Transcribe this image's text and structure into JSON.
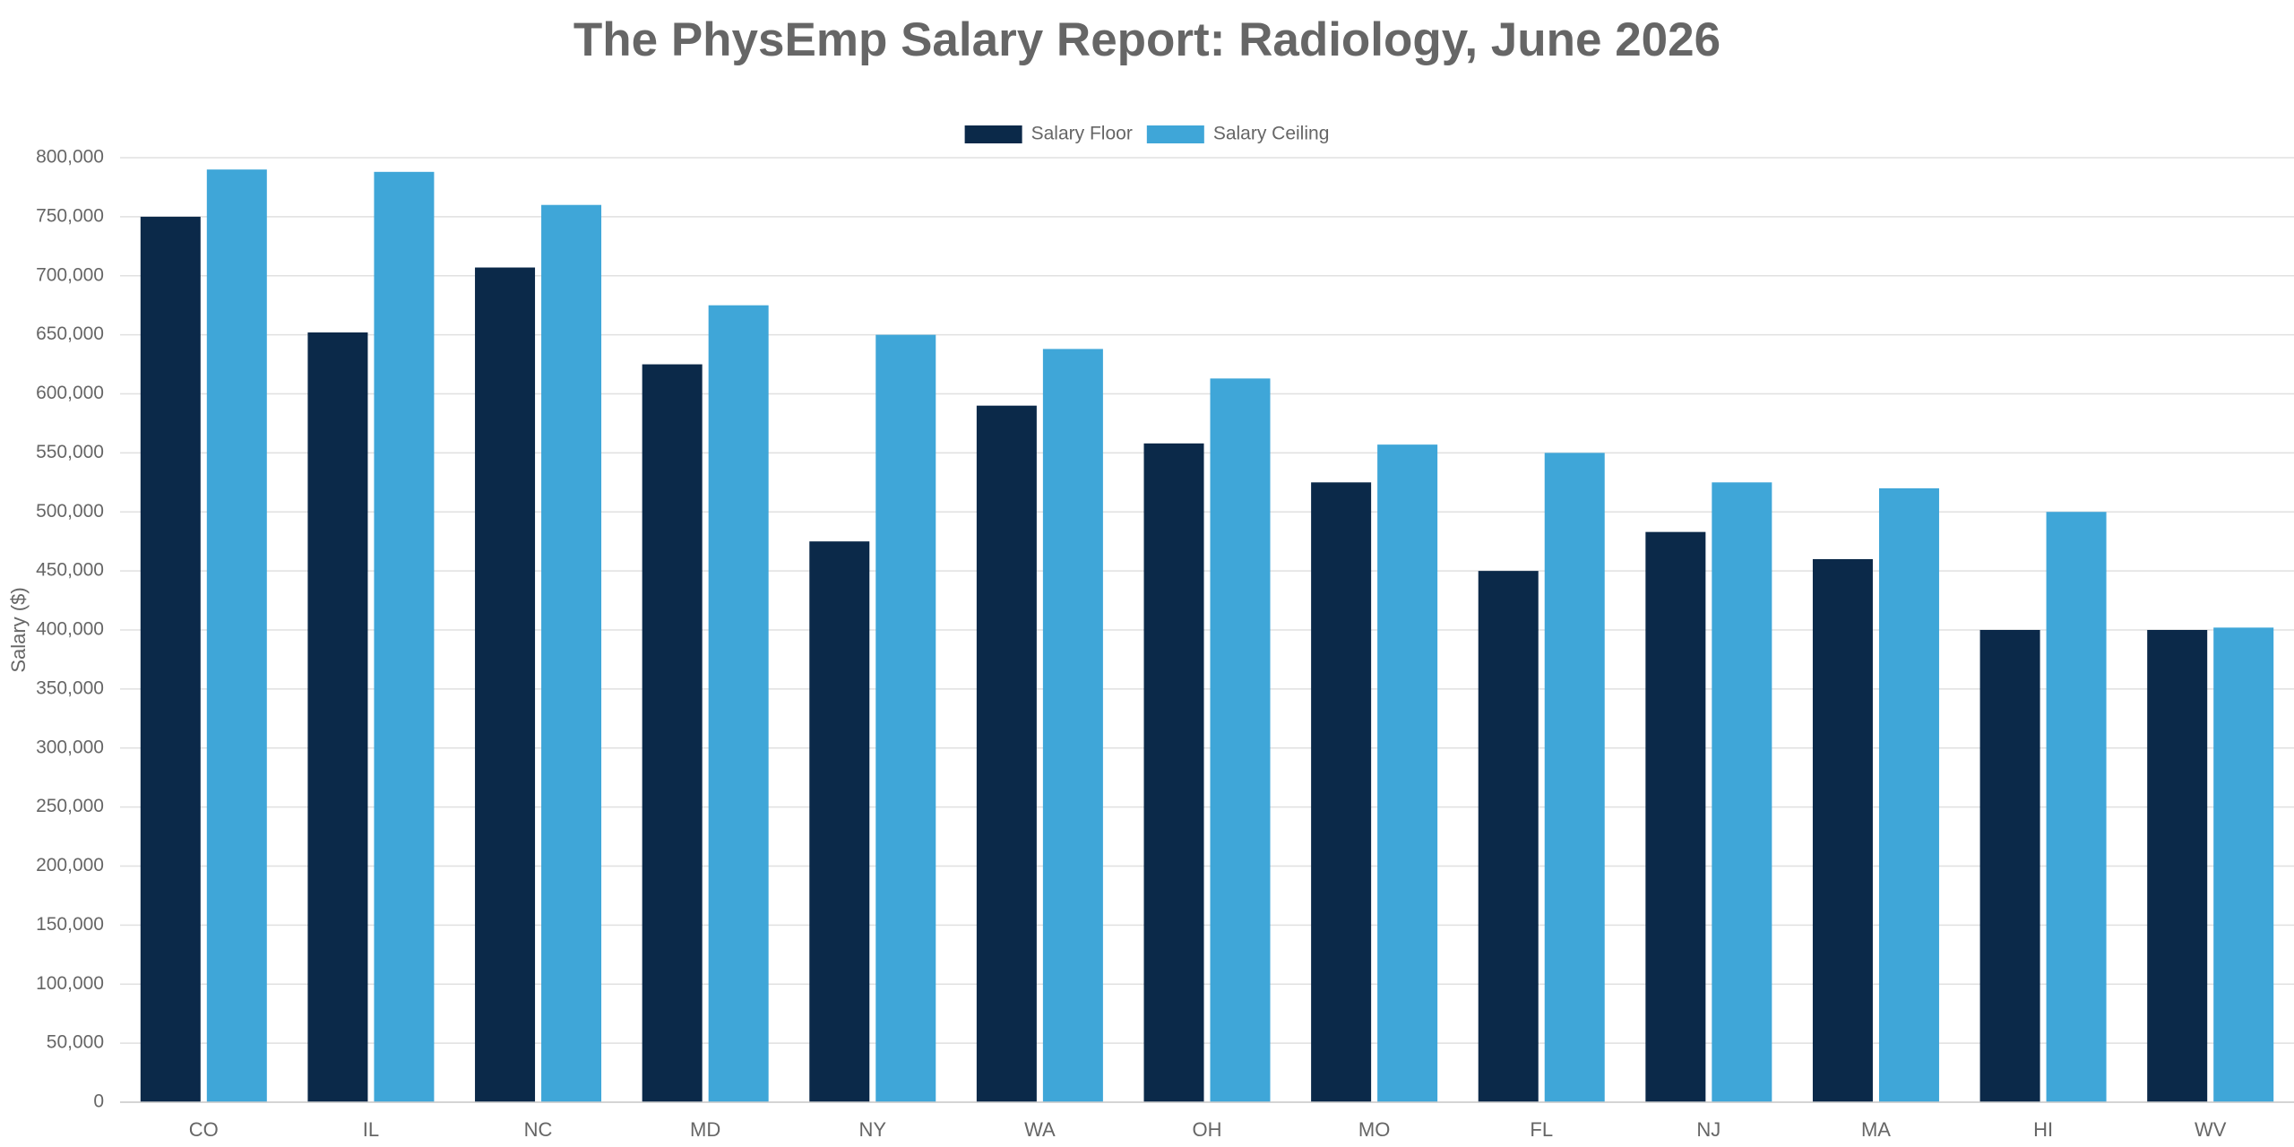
{
  "chart_data": {
    "type": "bar",
    "title": "The PhysEmp Salary Report: Radiology, June 2026",
    "y_label": "Salary ($)",
    "categories": [
      "CO",
      "IL",
      "NC",
      "MD",
      "NY",
      "WA",
      "OH",
      "MO",
      "FL",
      "NJ",
      "MA",
      "HI",
      "WV"
    ],
    "series": [
      {
        "name": "Salary Floor",
        "color": "#0b2949",
        "values": [
          750000,
          652000,
          707000,
          625000,
          475000,
          590000,
          558000,
          525000,
          450000,
          483000,
          460000,
          400000,
          400000
        ]
      },
      {
        "name": "Salary Ceiling",
        "color": "#3fa6d8",
        "values": [
          790000,
          788000,
          760000,
          675000,
          650000,
          638000,
          613000,
          557000,
          550000,
          525000,
          520000,
          500000,
          402000
        ]
      }
    ],
    "ylim": [
      0,
      800000
    ],
    "yticks": [
      0,
      {
        "value": 50000,
        "label": "50,000"
      },
      {
        "value": 100000,
        "label": "100,000"
      },
      {
        "value": 150000,
        "label": "150,000"
      },
      {
        "value": 200000,
        "label": "200,000"
      },
      {
        "value": 250000,
        "label": "250,000"
      },
      {
        "value": 300000,
        "label": "300,000"
      },
      {
        "value": 350000,
        "label": "350,000"
      },
      {
        "value": 400000,
        "label": "400,000"
      },
      {
        "value": 450000,
        "label": "450,000"
      },
      {
        "value": 500000,
        "label": "500,000"
      },
      {
        "value": 550000,
        "label": "550,000"
      },
      {
        "value": 600000,
        "label": "600,000"
      },
      {
        "value": 650000,
        "label": "650,000"
      },
      {
        "value": 700000,
        "label": "700,000"
      },
      {
        "value": 750000,
        "label": "750,000"
      },
      {
        "value": 800000,
        "label": "800,000"
      }
    ],
    "grid": true,
    "legend": "top"
  }
}
